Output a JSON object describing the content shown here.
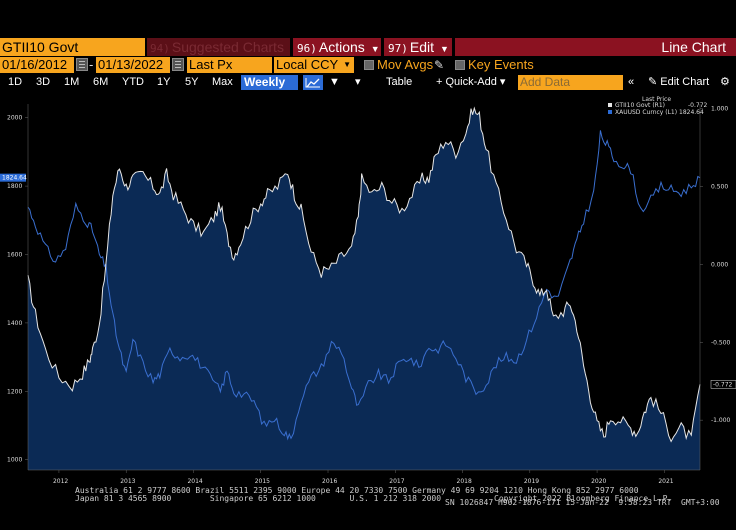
{
  "toolbar1": {
    "ticker": "GTII10 Govt",
    "suggested_num": "94)",
    "suggested_label": "Suggested Charts",
    "actions_num": "96)",
    "actions_label": "Actions",
    "edit_num": "97)",
    "edit_label": "Edit",
    "view_title": "Line Chart"
  },
  "toolbar2": {
    "start_date": "01/16/2012",
    "end_date": "01/13/2022",
    "field": "Last Px",
    "currency": "Local CCY",
    "mov_avgs": "Mov Avgs",
    "key_events": "Key Events"
  },
  "toolbar3": {
    "ranges": [
      "1D",
      "3D",
      "1M",
      "6M",
      "YTD",
      "1Y",
      "5Y",
      "Max"
    ],
    "period": "Weekly",
    "table": "Table",
    "quick_add": "Quick-Add",
    "add_data_placeholder": "Add Data",
    "edit_chart": "Edit Chart"
  },
  "legend": {
    "header": "Last Price",
    "gold_label": "GTII10 Govt (R1)",
    "gold_value": "-0.772",
    "blue_label": "XAUUSD Curncy (L1) 1824.64"
  },
  "colors": {
    "accent_orange": "#f7a51e",
    "menu_red": "#8b1221",
    "gold_line": "#e6e6e6",
    "blue_line": "#3a6fd0",
    "area_fill": "#0b2a55"
  },
  "chart_data": {
    "type": "line",
    "x_range": [
      "2012-01-16",
      "2022-01-13"
    ],
    "xtick_labels": [
      "2012",
      "2013",
      "2014",
      "2015",
      "2016",
      "2017",
      "2018",
      "2019",
      "2020",
      "2021"
    ],
    "left_axis": {
      "ticks": [
        1000,
        1200,
        1400,
        1600,
        1800,
        2000
      ],
      "ylim": [
        970,
        2040
      ],
      "marker": "1824.64"
    },
    "right_axis": {
      "ticks": [
        "1.000",
        "0.500",
        "0.000",
        "-0.500",
        "-1.000"
      ],
      "tick_values": [
        1.0,
        0.5,
        0.0,
        -0.5,
        -1.0
      ],
      "ylim": [
        -1.32,
        1.03
      ],
      "marker": "-0.772"
    },
    "series": [
      {
        "name": "GTII10 Govt (R1)",
        "axis": "right",
        "x": [
          2012.04,
          2012.15,
          2012.3,
          2012.5,
          2012.7,
          2012.85,
          2012.95,
          2013.0,
          2013.1,
          2013.2,
          2013.3,
          2013.4,
          2013.5,
          2013.6,
          2013.75,
          2013.9,
          2014.0,
          2014.1,
          2014.2,
          2014.35,
          2014.5,
          2014.65,
          2014.8,
          2014.9,
          2015.0,
          2015.1,
          2015.2,
          2015.35,
          2015.5,
          2015.6,
          2015.75,
          2015.9,
          2016.0,
          2016.1,
          2016.25,
          2016.4,
          2016.55,
          2016.7,
          2016.85,
          2016.95,
          2017.0,
          2017.15,
          2017.3,
          2017.45,
          2017.6,
          2017.75,
          2017.9,
          2018.0,
          2018.1,
          2018.25,
          2018.4,
          2018.55,
          2018.65,
          2018.75,
          2018.85,
          2019.0,
          2019.15,
          2019.3,
          2019.45,
          2019.55,
          2019.65,
          2019.75,
          2019.85,
          2020.0,
          2020.1,
          2020.2,
          2020.3,
          2020.4,
          2020.5,
          2020.6,
          2020.7,
          2020.85,
          2021.0,
          2021.1,
          2021.2,
          2021.3,
          2021.45,
          2021.6,
          2021.75,
          2021.9,
          2022.03
        ],
        "y": [
          -0.1,
          -0.32,
          -0.55,
          -0.72,
          -0.78,
          -0.7,
          -0.62,
          -0.55,
          -0.38,
          0.0,
          0.45,
          0.62,
          0.5,
          0.55,
          0.58,
          0.5,
          0.45,
          0.58,
          0.45,
          0.35,
          0.25,
          0.2,
          0.3,
          0.38,
          0.18,
          0.05,
          0.15,
          0.3,
          0.4,
          0.45,
          0.5,
          0.6,
          0.45,
          0.35,
          0.08,
          -0.05,
          -0.02,
          0.05,
          0.1,
          0.3,
          0.55,
          0.45,
          0.5,
          0.4,
          0.35,
          0.45,
          0.55,
          0.55,
          0.7,
          0.8,
          0.72,
          0.85,
          1.0,
          0.95,
          0.75,
          0.5,
          0.3,
          0.1,
          0.0,
          -0.1,
          -0.2,
          -0.15,
          -0.35,
          -0.3,
          -0.25,
          -0.4,
          -0.65,
          -0.85,
          -1.02,
          -1.1,
          -0.98,
          -1.0,
          -1.05,
          -1.08,
          -0.95,
          -0.85,
          -0.95,
          -1.1,
          -1.05,
          -1.12,
          -0.77
        ]
      },
      {
        "name": "XAUUSD Curncy (L1)",
        "axis": "left",
        "x": [
          2012.04,
          2012.15,
          2012.3,
          2012.45,
          2012.6,
          2012.75,
          2012.9,
          2013.0,
          2013.1,
          2013.2,
          2013.3,
          2013.4,
          2013.5,
          2013.6,
          2013.75,
          2013.9,
          2014.0,
          2014.15,
          2014.3,
          2014.45,
          2014.6,
          2014.75,
          2014.9,
          2015.0,
          2015.1,
          2015.25,
          2015.4,
          2015.55,
          2015.7,
          2015.85,
          2015.95,
          2016.1,
          2016.25,
          2016.4,
          2016.55,
          2016.7,
          2016.85,
          2016.95,
          2017.1,
          2017.25,
          2017.4,
          2017.55,
          2017.7,
          2017.85,
          2018.0,
          2018.1,
          2018.25,
          2018.4,
          2018.55,
          2018.7,
          2018.85,
          2019.0,
          2019.15,
          2019.3,
          2019.45,
          2019.6,
          2019.75,
          2019.9,
          2020.0,
          2020.1,
          2020.2,
          2020.3,
          2020.45,
          2020.55,
          2020.65,
          2020.75,
          2020.9,
          2021.0,
          2021.15,
          2021.3,
          2021.45,
          2021.6,
          2021.75,
          2021.9,
          2022.03
        ],
        "y": [
          1740,
          1690,
          1620,
          1580,
          1620,
          1740,
          1700,
          1670,
          1600,
          1560,
          1420,
          1320,
          1250,
          1350,
          1280,
          1230,
          1250,
          1320,
          1300,
          1310,
          1280,
          1240,
          1200,
          1260,
          1200,
          1190,
          1170,
          1100,
          1120,
          1080,
          1060,
          1180,
          1240,
          1270,
          1340,
          1320,
          1210,
          1150,
          1220,
          1250,
          1230,
          1280,
          1300,
          1270,
          1330,
          1320,
          1340,
          1300,
          1240,
          1200,
          1220,
          1280,
          1300,
          1290,
          1350,
          1420,
          1500,
          1470,
          1520,
          1580,
          1640,
          1700,
          1780,
          1950,
          1920,
          1880,
          1860,
          1850,
          1730,
          1760,
          1800,
          1790,
          1780,
          1800,
          1824.64
        ]
      }
    ]
  },
  "footer": {
    "line1": "Australia 61 2 9777 8600 Brazil 5511 2395 9000 Europe 44 20 7330 7500 Germany 49 69 9204 1210 Hong Kong 852 2977 6000",
    "line2": "Japan 81 3 4565 8900        Singapore 65 6212 1000       U.S. 1 212 318 2000           Copyright 2022 Bloomberg Finance L.P.",
    "line3": "SN 1026847 H902-1876-171 15-Jan-22  9:58:23 TRT  GMT+3:00"
  }
}
